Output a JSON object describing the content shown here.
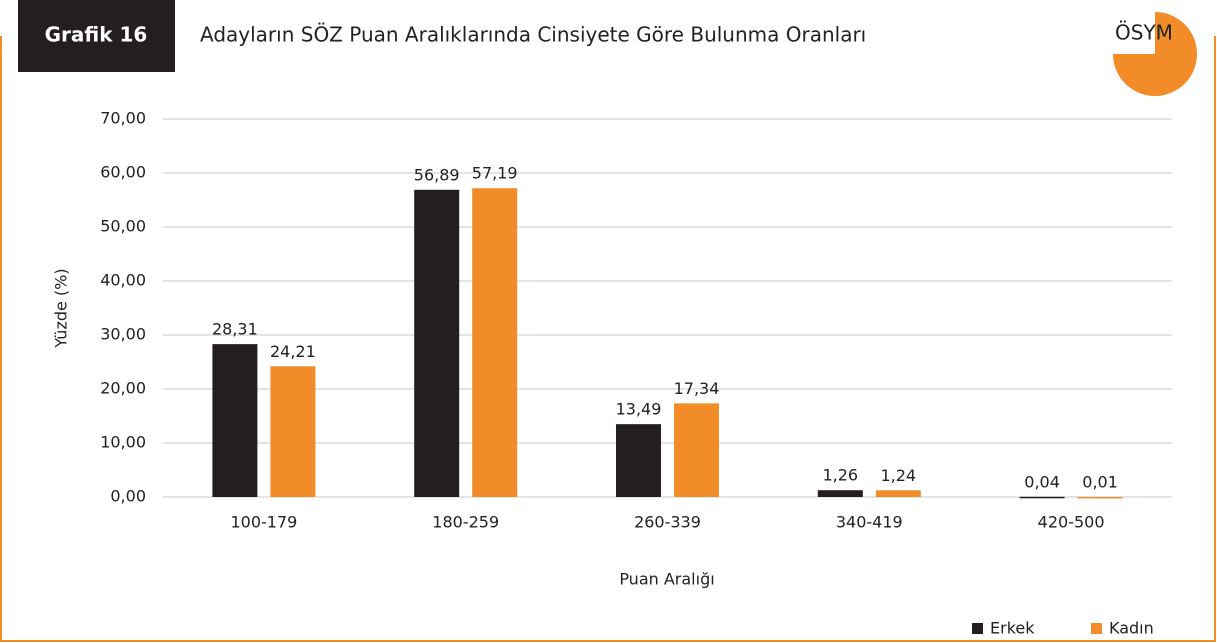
{
  "chart_data": {
    "type": "bar",
    "label": "Grafik 16",
    "title": "Adayların SÖZ Puan Aralıklarında Cinsiyete Göre Bulunma Oranları",
    "logo_text": "ÖSYM",
    "x_label": "Puan Aralığı",
    "y_label": "Yüzde (%)",
    "categories": [
      "100-179",
      "180-259",
      "260-339",
      "340-419",
      "420-500"
    ],
    "series": [
      {
        "name": "Erkek",
        "color": "#231f20",
        "values": [
          28.31,
          56.89,
          13.49,
          1.26,
          0.04
        ],
        "value_labels": [
          "28,31",
          "56,89",
          "13,49",
          "1,26",
          "0,04"
        ]
      },
      {
        "name": "Kadın",
        "color": "#f28c28",
        "values": [
          24.21,
          57.19,
          17.34,
          1.24,
          0.01
        ],
        "value_labels": [
          "24,21",
          "57,19",
          "17,34",
          "1,24",
          "0,01"
        ]
      }
    ],
    "ylim": [
      0,
      70
    ],
    "yticks": [
      {
        "value": 0,
        "label": "0,00"
      },
      {
        "value": 10,
        "label": "10,00"
      },
      {
        "value": 20,
        "label": "20,00"
      },
      {
        "value": 30,
        "label": "30,00"
      },
      {
        "value": 40,
        "label": "40,00"
      },
      {
        "value": 50,
        "label": "50,00"
      },
      {
        "value": 60,
        "label": "60,00"
      },
      {
        "value": 70,
        "label": "70,00"
      }
    ],
    "grid": true,
    "legend": "bottom-right"
  }
}
